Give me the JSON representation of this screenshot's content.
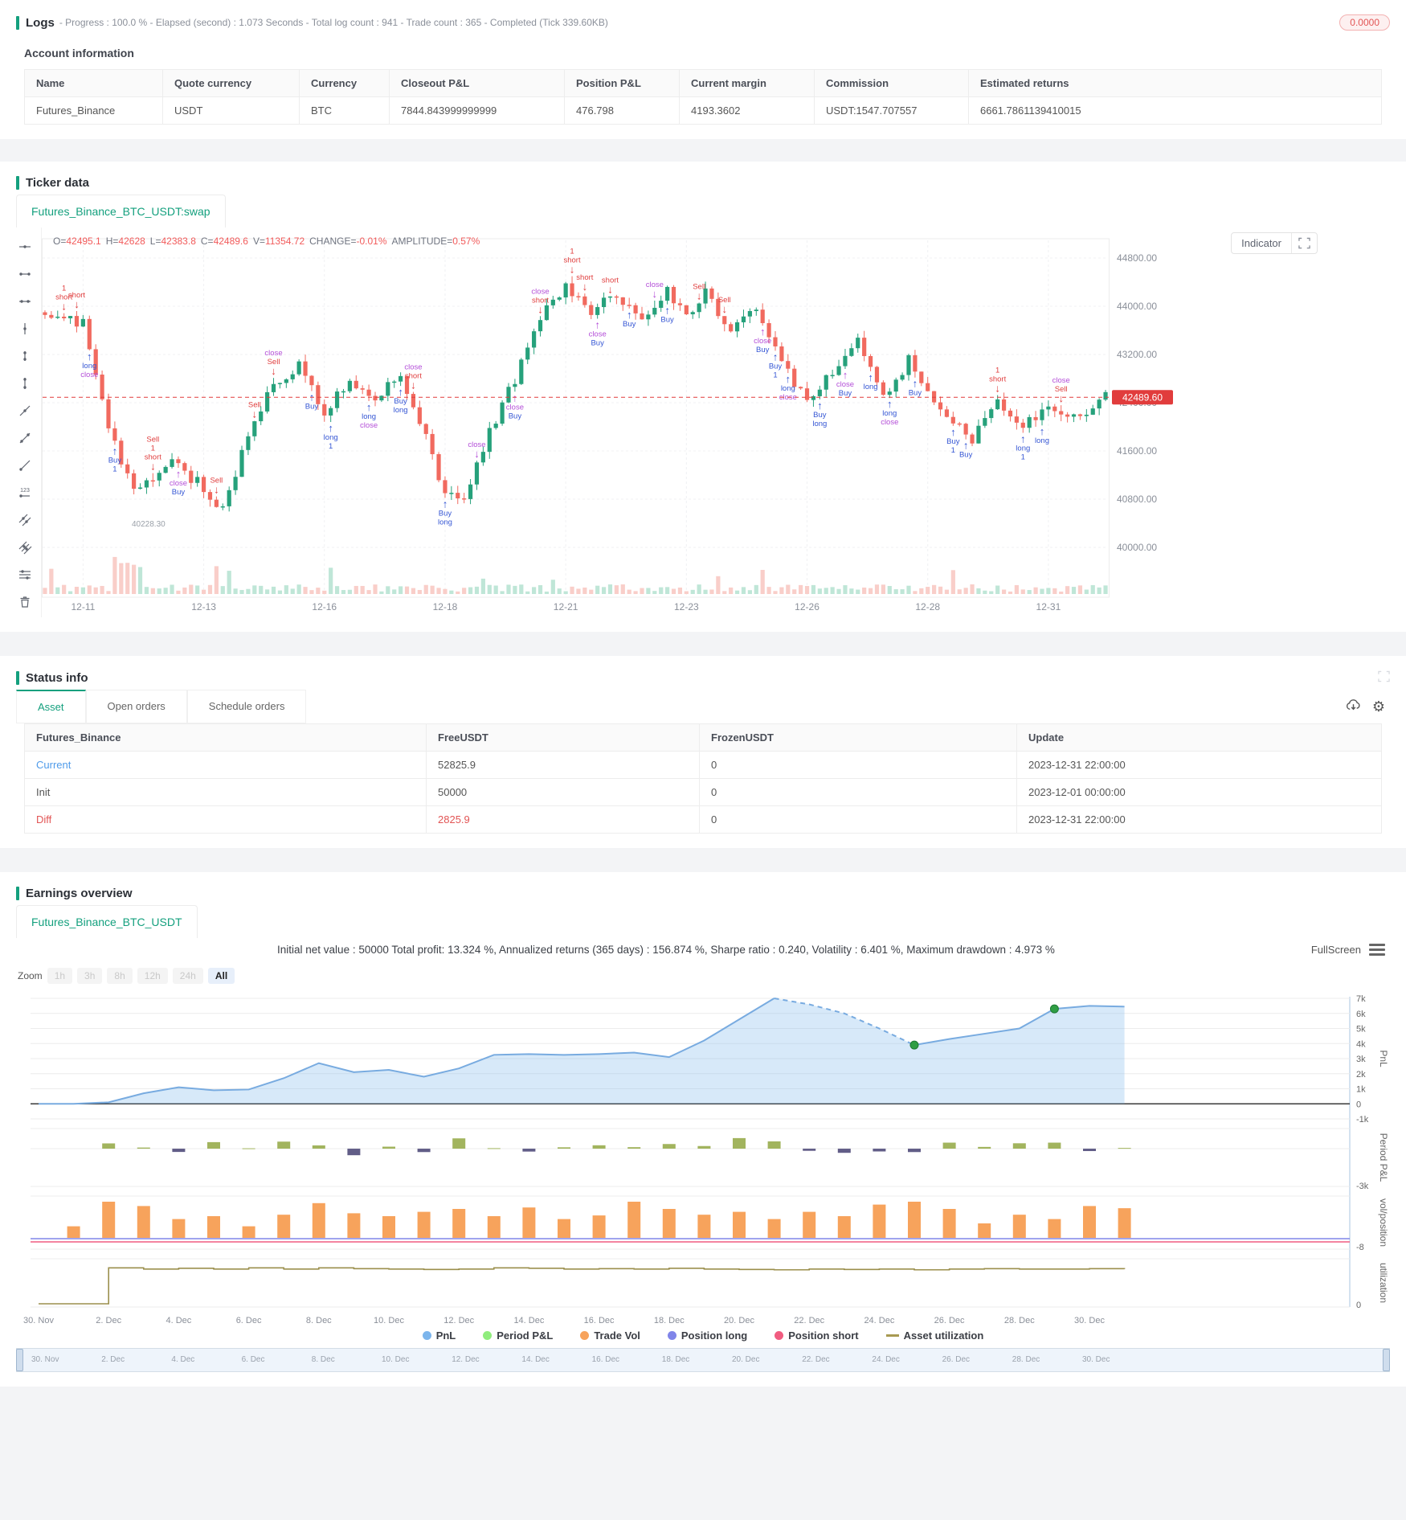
{
  "logs": {
    "title": "Logs",
    "summary": "- Progress : 100.0 % - Elapsed (second) : 1.073  Seconds - Total log count : 941 - Trade count : 365 - Completed (Tick 339.60KB)",
    "badge": "0.0000",
    "account_info": {
      "title": "Account information",
      "headers": [
        "Name",
        "Quote currency",
        "Currency",
        "Closeout P&L",
        "Position P&L",
        "Current margin",
        "Commission",
        "Estimated returns"
      ],
      "rows": [
        [
          "Futures_Binance",
          "USDT",
          "BTC",
          "7844.843999999999",
          "476.798",
          "4193.3602",
          "USDT:1547.707557",
          "6661.7861139410015"
        ]
      ]
    }
  },
  "ticker": {
    "title": "Ticker data",
    "tab": "Futures_Binance_BTC_USDT:swap",
    "ohlc": [
      {
        "k": "O=",
        "v": "42495.1"
      },
      {
        "k": "H=",
        "v": "42628"
      },
      {
        "k": "L=",
        "v": "42383.8"
      },
      {
        "k": "C=",
        "v": "42489.6"
      },
      {
        "k": "V=",
        "v": "11354.72"
      },
      {
        "k": "CHANGE=",
        "v": "-0.01%"
      },
      {
        "k": "AMPLITUDE=",
        "v": "0.57%"
      }
    ],
    "indicator_label": "Indicator",
    "toolbar_icons": [
      "horizontal-ray-icon",
      "horizontal-segment-icon",
      "horizontal-line-icon",
      "vertical-ray-icon",
      "vertical-segment-icon",
      "vertical-line-icon",
      "trend-ray-icon",
      "trend-segment-icon",
      "trend-line-icon",
      "price-note-icon",
      "parallel-ray-icon",
      "parallel-lines-icon",
      "fib-lines-icon",
      "delete-icon"
    ]
  },
  "status": {
    "title": "Status info",
    "tabs": [
      "Asset",
      "Open orders",
      "Schedule orders"
    ],
    "active_tab": "Asset",
    "table": {
      "headers": [
        "Futures_Binance",
        "FreeUSDT",
        "FrozenUSDT",
        "Update"
      ],
      "rows": [
        {
          "label": "Current",
          "label_color": "#4f9bea",
          "cells": [
            "52825.9",
            "0",
            "2023-12-31 22:00:00"
          ],
          "cell_colors": [
            "",
            "",
            ""
          ]
        },
        {
          "label": "Init",
          "label_color": "",
          "cells": [
            "50000",
            "0",
            "2023-12-01 00:00:00"
          ],
          "cell_colors": [
            "",
            "",
            ""
          ]
        },
        {
          "label": "Diff",
          "label_color": "#e25555",
          "cells": [
            "2825.9",
            "0",
            "2023-12-31 22:00:00"
          ],
          "cell_colors": [
            "#e25555",
            "",
            ""
          ]
        }
      ]
    }
  },
  "earnings": {
    "title": "Earnings overview",
    "tab": "Futures_Binance_BTC_USDT",
    "stats": "Initial net value : 50000 Total profit: 13.324 %, Annualized returns (365 days) : 156.874 %, Sharpe ratio : 0.240, Volatility : 6.401 %, Maximum drawdown : 4.973 %",
    "fullscreen_label": "FullScreen",
    "zoom_label": "Zoom",
    "zoom_buttons": [
      "1h",
      "3h",
      "8h",
      "12h",
      "24h",
      "All"
    ],
    "active_zoom": "All",
    "legend": [
      {
        "label": "PnL",
        "color": "#7cb5ec",
        "marker": "dot"
      },
      {
        "label": "Period P&L",
        "color": "#90ed7d",
        "marker": "dot"
      },
      {
        "label": "Trade Vol",
        "color": "#f7a35c",
        "marker": "dot"
      },
      {
        "label": "Position long",
        "color": "#8085e9",
        "marker": "dot"
      },
      {
        "label": "Position short",
        "color": "#f15c80",
        "marker": "dot"
      },
      {
        "label": "Asset utilization",
        "color": "#a89a52",
        "marker": "line"
      }
    ]
  },
  "chart_data": [
    {
      "type": "candlestick",
      "title": "Futures_Binance_BTC_USDT:swap",
      "ylim": [
        40000,
        44800
      ],
      "y_ticks": [
        "44800.00",
        "44000.00",
        "43200.00",
        "42400.00",
        "41600.00",
        "40800.00",
        "40000.00"
      ],
      "x_ticks": [
        "12-11",
        "12-13",
        "12-16",
        "12-18",
        "12-21",
        "12-23",
        "12-26",
        "12-28",
        "12-31"
      ],
      "last_price": 42489.6,
      "price_tag": "42489.60",
      "low_marker": "40228.30",
      "candle_count": 168,
      "trend": [
        [
          0,
          43900
        ],
        [
          6,
          43700
        ],
        [
          10,
          42000
        ],
        [
          14,
          40900
        ],
        [
          20,
          41400
        ],
        [
          25,
          41000
        ],
        [
          28,
          40600
        ],
        [
          32,
          41900
        ],
        [
          36,
          42700
        ],
        [
          40,
          43000
        ],
        [
          44,
          42200
        ],
        [
          48,
          42800
        ],
        [
          52,
          42400
        ],
        [
          56,
          42900
        ],
        [
          60,
          41800
        ],
        [
          63,
          40900
        ],
        [
          66,
          40800
        ],
        [
          70,
          41900
        ],
        [
          74,
          42800
        ],
        [
          78,
          43800
        ],
        [
          82,
          44300
        ],
        [
          86,
          43900
        ],
        [
          90,
          44200
        ],
        [
          94,
          43800
        ],
        [
          98,
          44250
        ],
        [
          101,
          43800
        ],
        [
          104,
          44200
        ],
        [
          108,
          43600
        ],
        [
          112,
          43900
        ],
        [
          116,
          43100
        ],
        [
          120,
          42400
        ],
        [
          124,
          42900
        ],
        [
          128,
          43400
        ],
        [
          132,
          42500
        ],
        [
          136,
          43100
        ],
        [
          139,
          42600
        ],
        [
          142,
          42200
        ],
        [
          146,
          41800
        ],
        [
          150,
          42400
        ],
        [
          154,
          42000
        ],
        [
          158,
          42300
        ],
        [
          163,
          42200
        ],
        [
          167,
          42489.6
        ]
      ],
      "marker_colors": {
        "short": "#e03e3e",
        "Sell": "#e03e3e",
        "close": "#b44fd8",
        "Buy": "#3556d4",
        "long": "#3556d4"
      },
      "up_color": "#26a17b",
      "down_color": "#f16a5f"
    },
    {
      "type": "area",
      "panels": [
        {
          "name": "PnL",
          "y_ticks": [
            "7k",
            "6k",
            "5k",
            "4k",
            "3k",
            "2k",
            "1k",
            "0",
            "-1k"
          ],
          "ylim": [
            -1000,
            7000
          ],
          "values": [
            0,
            0,
            100,
            700,
            1100,
            900,
            950,
            1700,
            2700,
            2100,
            2250,
            1800,
            2350,
            3250,
            3300,
            3250,
            3300,
            3400,
            3100,
            4200,
            5600,
            7000,
            6600,
            6000,
            5000,
            3900,
            4300,
            4650,
            5000,
            6300,
            6500,
            6450
          ],
          "drawdown_dash": [
            21,
            25
          ],
          "dots": [
            [
              25,
              3900
            ],
            [
              29,
              6300
            ]
          ]
        },
        {
          "name": "Period P&L",
          "y_ticks": [
            "-3k"
          ],
          "ylim": [
            -3000,
            1600
          ],
          "values": [
            0,
            0,
            420,
            90,
            -260,
            520,
            30,
            560,
            260,
            -520,
            160,
            -270,
            820,
            40,
            -230,
            110,
            270,
            120,
            370,
            210,
            840,
            580,
            -170,
            -330,
            -220,
            -270,
            480,
            140,
            430,
            480,
            -190,
            60
          ],
          "pos_color": "#a2b45e",
          "neg_color": "#615d87"
        },
        {
          "name": "vol/position",
          "y_ticks": [
            "-8"
          ],
          "ylim": [
            -8,
            6
          ],
          "values": [
            0,
            1.6,
            5,
            4.4,
            2.6,
            3,
            1.6,
            3.2,
            4.8,
            3.4,
            3,
            3.6,
            4,
            3,
            4.2,
            2.6,
            3.1,
            5,
            4,
            3.2,
            3.6,
            2.6,
            3.6,
            3,
            4.6,
            5,
            4,
            2,
            3.2,
            2.6,
            4.4,
            4.1
          ],
          "bar_color": "#f7a35c",
          "long_color": "#8085e9",
          "short_color": "#f15c80"
        },
        {
          "name": "utilization",
          "y_ticks": [
            "0"
          ],
          "ylim": [
            0,
            1
          ],
          "values": [
            0,
            0,
            0.93,
            0.9,
            0.92,
            0.9,
            0.93,
            0.9,
            0.93,
            0.91,
            0.9,
            0.89,
            0.9,
            0.93,
            0.92,
            0.9,
            0.91,
            0.9,
            0.92,
            0.9,
            0.89,
            0.88,
            0.9,
            0.89,
            0.9,
            0.88,
            0.9,
            0.91,
            0.9,
            0.9,
            0.91,
            0.9
          ]
        }
      ],
      "x_labels": [
        "30. Nov",
        "2. Dec",
        "4. Dec",
        "6. Dec",
        "8. Dec",
        "10. Dec",
        "12. Dec",
        "14. Dec",
        "16. Dec",
        "18. Dec",
        "20. Dec",
        "22. Dec",
        "24. Dec",
        "26. Dec",
        "28. Dec",
        "30. Dec"
      ],
      "line_color": "#78abe0",
      "area_color": "rgba(124,181,236,0.30)",
      "dot_color": "#2f9e44",
      "util_color": "#9b8f4d"
    }
  ]
}
